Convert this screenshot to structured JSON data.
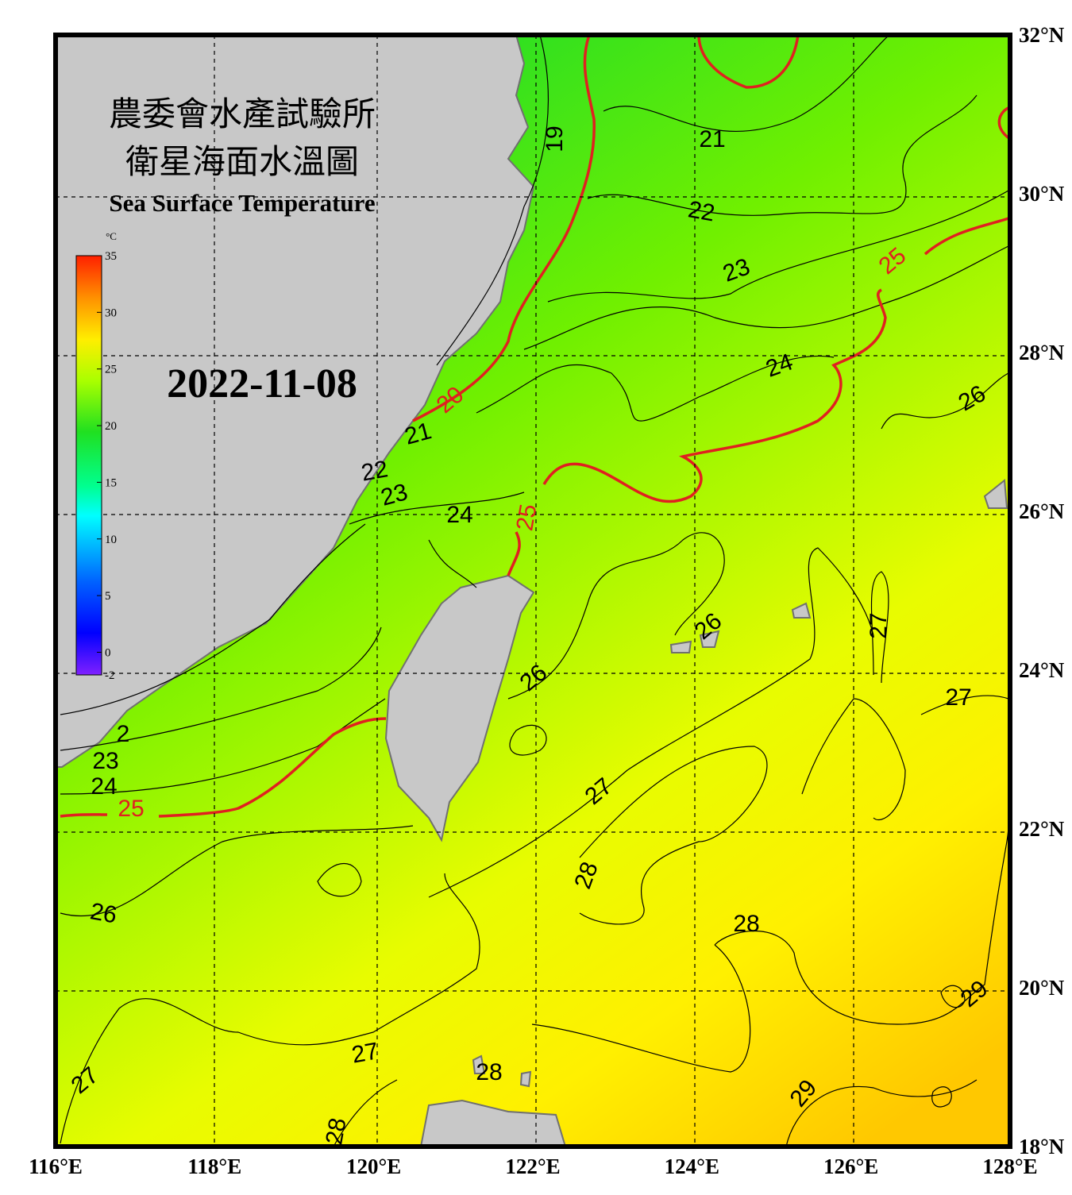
{
  "header": {
    "title_line_1": "農委會水產試驗所",
    "title_line_2": "衛星海面水溫圖",
    "title_en": "Sea Surface Temperature",
    "date": "2022-11-08"
  },
  "colorbar": {
    "unit": "°C",
    "range": [
      -2,
      35
    ],
    "ticks": [
      -2,
      0,
      5,
      10,
      15,
      20,
      25,
      30,
      35
    ]
  },
  "map": {
    "lon_labels": [
      "116°E",
      "118°E",
      "120°E",
      "122°E",
      "124°E",
      "126°E",
      "128°E"
    ],
    "lat_labels": [
      "32°N",
      "30°N",
      "28°N",
      "26°N",
      "24°N",
      "22°N",
      "20°N",
      "18°N"
    ],
    "contour_labels": [
      19,
      21,
      22,
      23,
      24,
      26,
      25,
      20,
      21,
      22,
      23,
      24,
      25,
      26,
      27,
      26,
      27,
      2,
      23,
      24,
      25,
      27,
      28,
      26,
      28,
      29,
      27,
      27,
      28,
      29,
      28
    ]
  }
}
